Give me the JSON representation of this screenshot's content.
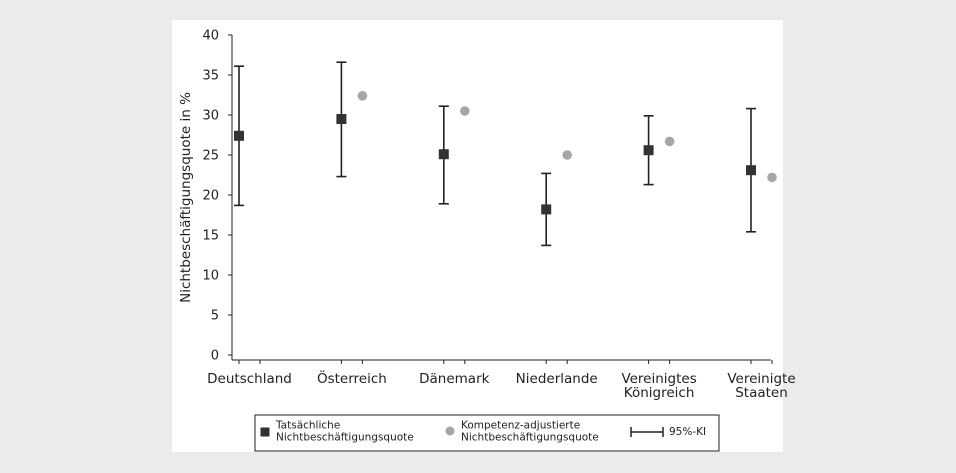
{
  "chart_data": {
    "type": "scatter",
    "title": "",
    "xlabel": "",
    "ylabel": "Nichtbeschäftigungsquote in %",
    "ylim": [
      0,
      40
    ],
    "yticks": [
      0,
      5,
      10,
      15,
      20,
      25,
      30,
      35,
      40
    ],
    "grid": false,
    "legend_position": "bottom",
    "categories": [
      [
        "Deutschland"
      ],
      [
        "Österreich"
      ],
      [
        "Dänemark"
      ],
      [
        "Niederlande"
      ],
      [
        "Vereinigtes",
        "Königreich"
      ],
      [
        "Vereinigte",
        "Staaten"
      ]
    ],
    "series": [
      {
        "name": "Tatsächliche Nichtbeschäftigungsquote",
        "legend_lines": [
          "Tatsächliche",
          "Nichtbeschäftigungsquote"
        ],
        "marker": "square",
        "color": "#333333",
        "values": [
          27.4,
          29.5,
          25.1,
          18.2,
          25.6,
          23.1
        ],
        "ci_low": [
          18.7,
          22.3,
          18.9,
          13.7,
          21.3,
          15.4
        ],
        "ci_high": [
          36.1,
          36.6,
          31.1,
          22.7,
          29.9,
          30.8
        ]
      },
      {
        "name": "Kompetenz-adjustierte Nichtbeschäftigungsquote",
        "legend_lines": [
          "Kompetenz-adjustierte",
          "Nichtbeschäftigungsquote"
        ],
        "marker": "circle",
        "color": "#a6a6a6",
        "values": [
          null,
          32.4,
          30.5,
          25.0,
          26.7,
          22.2
        ]
      }
    ],
    "ci_legend_label": "95%-KI",
    "colors": {
      "frame_background": "#ffffff",
      "page_background": "#ebebeb",
      "axis": "#222222"
    }
  }
}
